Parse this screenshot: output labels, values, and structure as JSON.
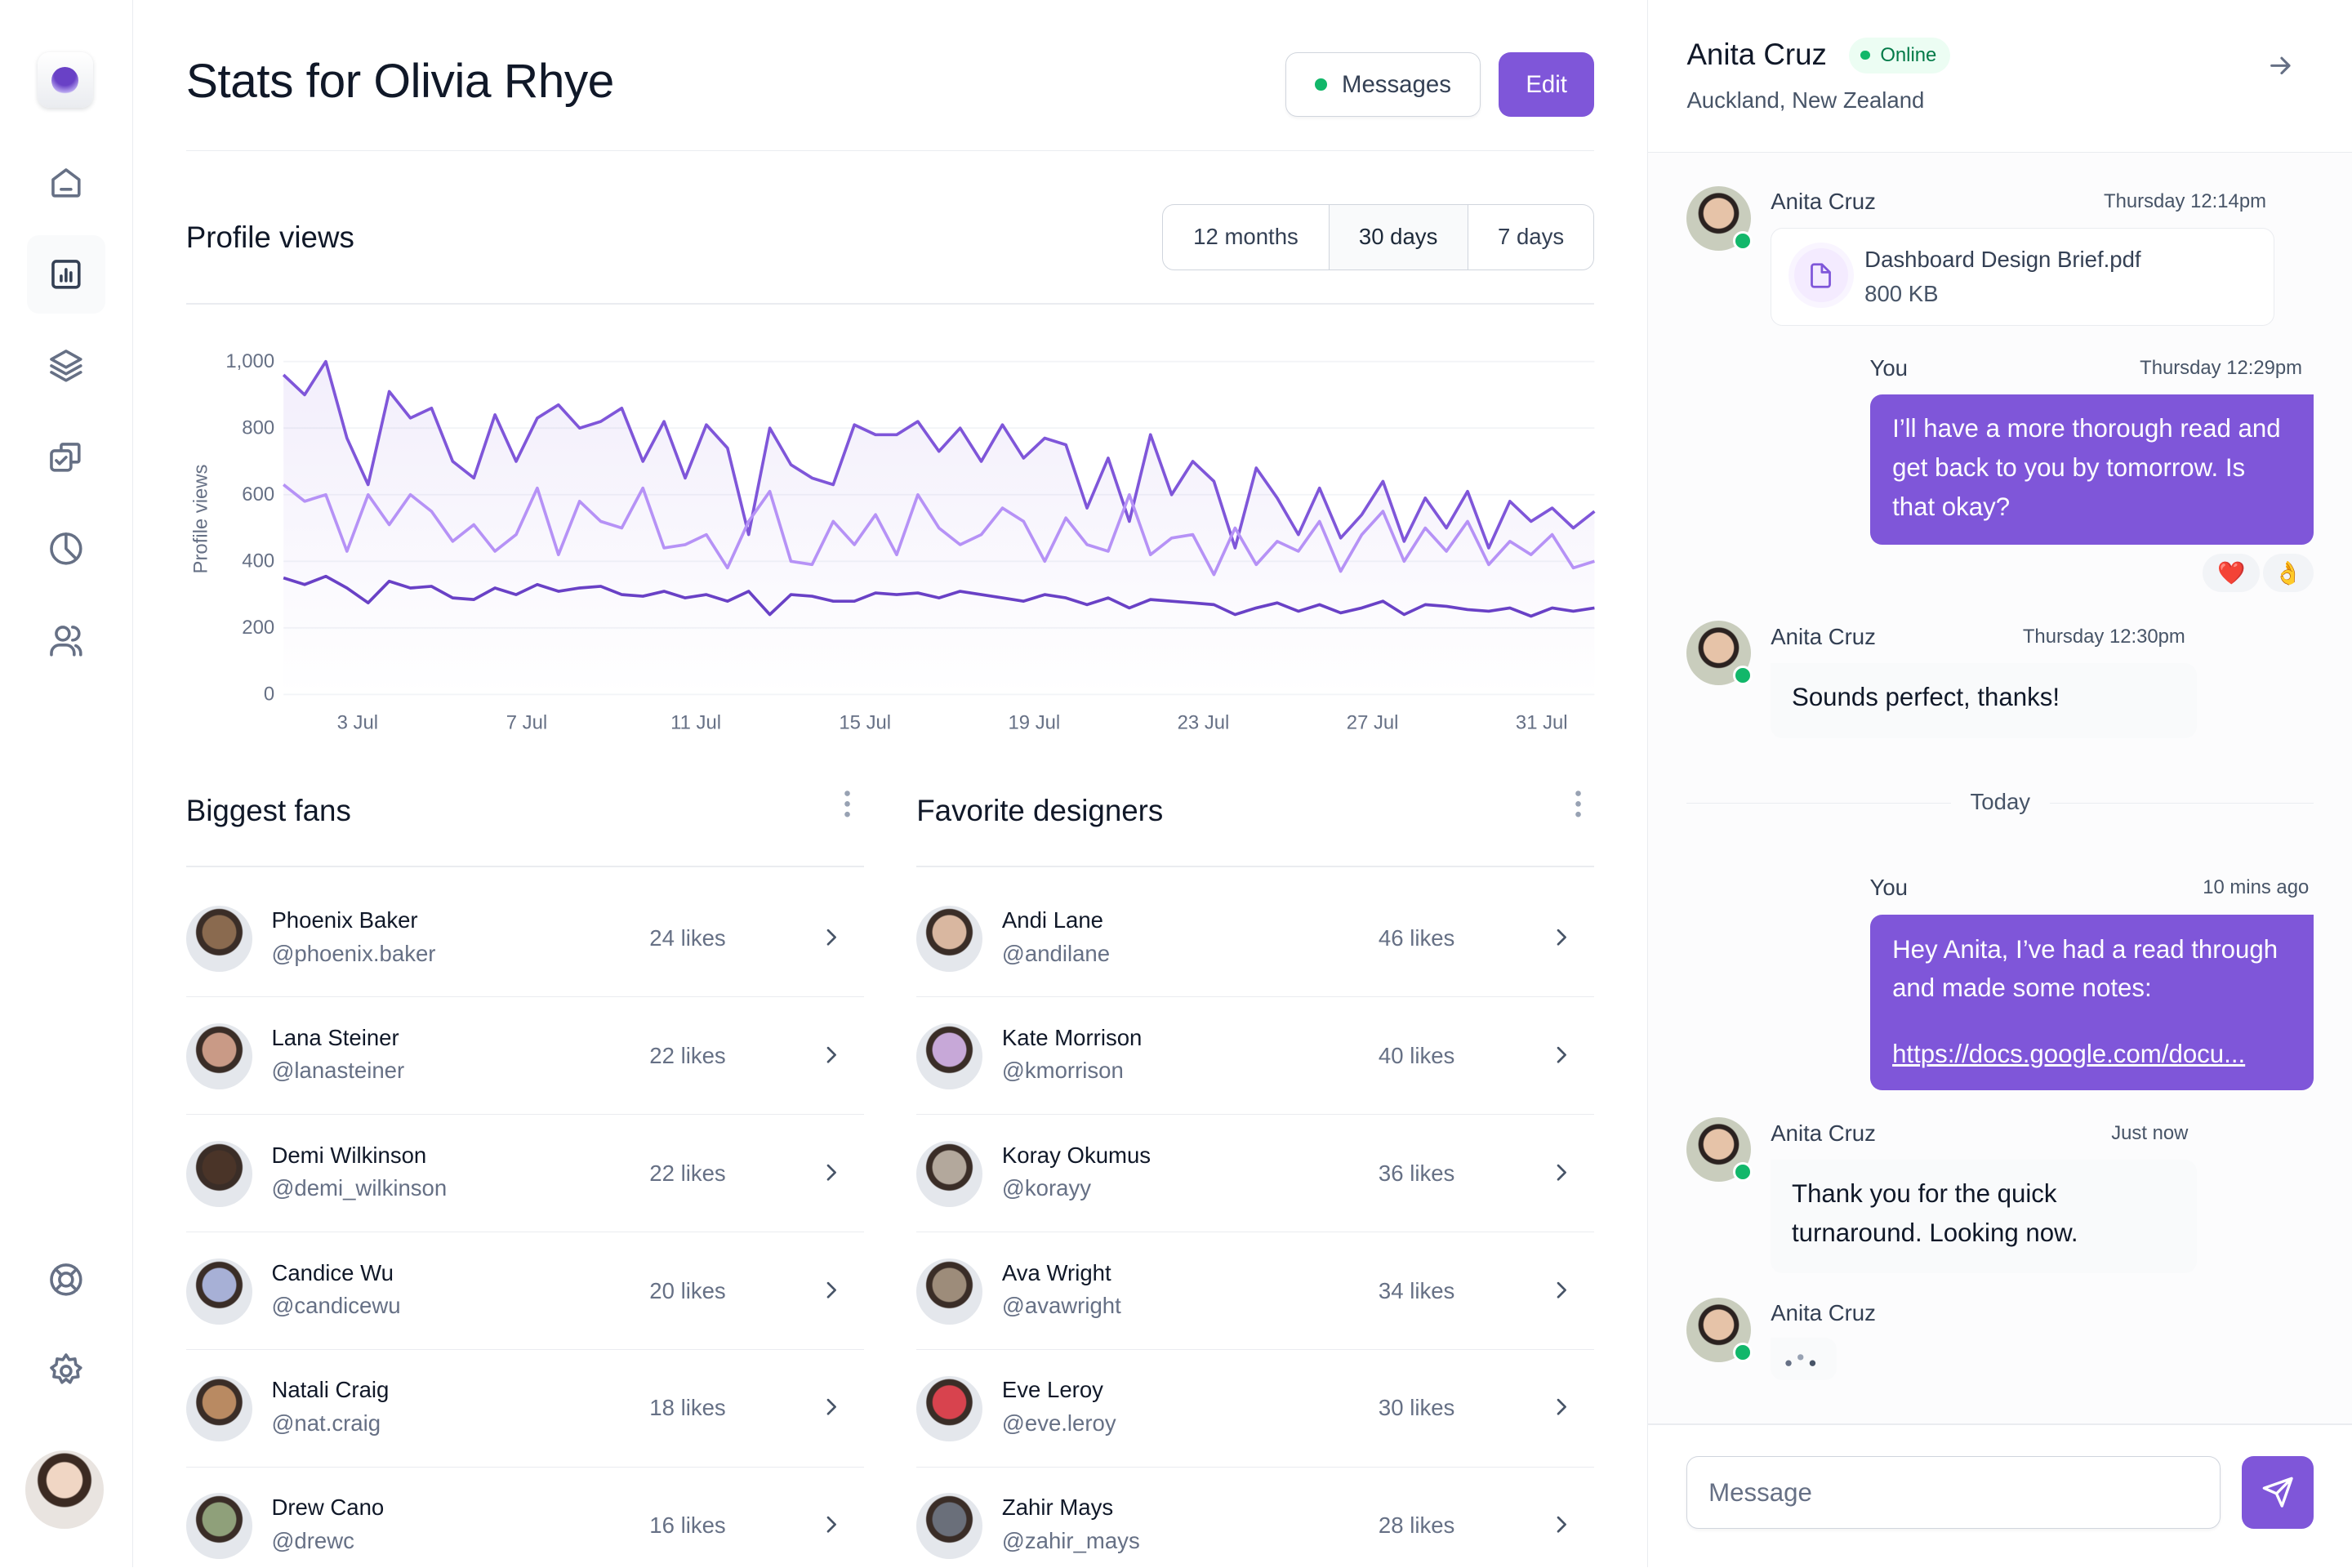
{
  "header": {
    "title": "Stats for Olivia Rhye",
    "messages_label": "Messages",
    "edit_label": "Edit"
  },
  "sidebar": {
    "items": [
      {
        "icon": "home-icon"
      },
      {
        "icon": "bar-chart-icon",
        "active": true
      },
      {
        "icon": "layers-icon"
      },
      {
        "icon": "check-copy-icon"
      },
      {
        "icon": "pie-chart-icon"
      },
      {
        "icon": "users-icon"
      }
    ],
    "bottom": [
      {
        "icon": "life-buoy-icon"
      },
      {
        "icon": "settings-icon"
      }
    ]
  },
  "profile_views": {
    "title": "Profile views",
    "tabs": [
      {
        "label": "12 months"
      },
      {
        "label": "30 days",
        "active": true
      },
      {
        "label": "7 days"
      }
    ]
  },
  "chart_data": {
    "type": "line",
    "title": "",
    "ylabel": "Profile views",
    "xlabel": "",
    "ylim": [
      0,
      1000
    ],
    "yticks": [
      "0",
      "200",
      "400",
      "600",
      "800",
      "1,000"
    ],
    "xticks": [
      "3 Jul",
      "7 Jul",
      "11 Jul",
      "15 Jul",
      "19 Jul",
      "23 Jul",
      "27 Jul",
      "31 Jul"
    ],
    "grid": true,
    "fill_under_top_series": true,
    "x": [
      "1 Jul 12:00",
      "2 Jul 00:00",
      "2 Jul 12:00",
      "3 Jul 00:00",
      "3 Jul 12:00",
      "4 Jul 00:00",
      "4 Jul 12:00",
      "5 Jul 00:00",
      "5 Jul 12:00",
      "6 Jul 00:00",
      "6 Jul 12:00",
      "7 Jul 00:00",
      "7 Jul 12:00",
      "8 Jul 00:00",
      "8 Jul 12:00",
      "9 Jul 00:00",
      "9 Jul 12:00",
      "10 Jul 00:00",
      "10 Jul 12:00",
      "11 Jul 00:00",
      "11 Jul 12:00",
      "12 Jul 00:00",
      "12 Jul 12:00",
      "13 Jul 00:00",
      "13 Jul 12:00",
      "14 Jul 00:00",
      "14 Jul 12:00",
      "15 Jul 00:00",
      "15 Jul 12:00",
      "16 Jul 00:00",
      "16 Jul 12:00",
      "17 Jul 00:00",
      "17 Jul 12:00",
      "18 Jul 00:00",
      "18 Jul 12:00",
      "19 Jul 00:00",
      "19 Jul 12:00",
      "20 Jul 00:00",
      "20 Jul 12:00",
      "21 Jul 00:00",
      "21 Jul 12:00",
      "22 Jul 00:00",
      "22 Jul 12:00",
      "23 Jul 00:00",
      "23 Jul 12:00",
      "24 Jul 00:00",
      "24 Jul 12:00",
      "25 Jul 00:00",
      "25 Jul 12:00",
      "26 Jul 00:00",
      "26 Jul 12:00",
      "27 Jul 00:00",
      "27 Jul 12:00",
      "28 Jul 00:00",
      "28 Jul 12:00",
      "29 Jul 00:00",
      "29 Jul 12:00",
      "30 Jul 00:00",
      "30 Jul 12:00",
      "31 Jul 00:00",
      "31 Jul 12:00",
      "1 Aug 00:00",
      "1 Aug 12:00"
    ],
    "series": [
      {
        "color": "#7F56D9",
        "values": [
          960,
          900,
          1000,
          770,
          630,
          910,
          830,
          860,
          700,
          650,
          840,
          700,
          830,
          870,
          800,
          820,
          860,
          700,
          820,
          650,
          810,
          740,
          480,
          800,
          690,
          650,
          630,
          810,
          780,
          780,
          820,
          730,
          800,
          700,
          810,
          710,
          770,
          750,
          560,
          710,
          520,
          780,
          600,
          700,
          640,
          440,
          680,
          590,
          480,
          620,
          470,
          540,
          640,
          460,
          590,
          500,
          610,
          440,
          580,
          520,
          560,
          500,
          550
        ]
      },
      {
        "color": "#B692F6",
        "values": [
          630,
          580,
          600,
          430,
          600,
          510,
          600,
          550,
          460,
          510,
          430,
          480,
          620,
          420,
          580,
          520,
          500,
          620,
          440,
          450,
          480,
          380,
          520,
          610,
          400,
          390,
          520,
          450,
          540,
          420,
          600,
          500,
          450,
          480,
          560,
          520,
          400,
          530,
          450,
          430,
          600,
          420,
          470,
          480,
          360,
          500,
          390,
          460,
          430,
          520,
          370,
          480,
          550,
          400,
          500,
          430,
          520,
          390,
          460,
          420,
          480,
          380,
          400
        ]
      },
      {
        "color": "#6941C6",
        "values": [
          350,
          330,
          355,
          320,
          275,
          340,
          320,
          325,
          290,
          285,
          320,
          300,
          330,
          310,
          320,
          325,
          300,
          295,
          310,
          290,
          300,
          280,
          310,
          240,
          300,
          295,
          280,
          280,
          305,
          300,
          305,
          290,
          310,
          300,
          290,
          280,
          300,
          290,
          270,
          290,
          260,
          285,
          280,
          275,
          270,
          240,
          260,
          275,
          250,
          270,
          245,
          260,
          280,
          240,
          270,
          265,
          255,
          250,
          260,
          235,
          260,
          250,
          260
        ]
      }
    ]
  },
  "fans": {
    "title": "Biggest fans",
    "items": [
      {
        "name": "Phoenix Baker",
        "handle": "@phoenix.baker",
        "likes": "24 likes",
        "avatar_color": "#8a6a4f"
      },
      {
        "name": "Lana Steiner",
        "handle": "@lanasteiner",
        "likes": "22 likes",
        "avatar_color": "#c99a86"
      },
      {
        "name": "Demi Wilkinson",
        "handle": "@demi_wilkinson",
        "likes": "22 likes",
        "avatar_color": "#4a3428"
      },
      {
        "name": "Candice Wu",
        "handle": "@candicewu",
        "likes": "20 likes",
        "avatar_color": "#a7b0d6"
      },
      {
        "name": "Natali Craig",
        "handle": "@nat.craig",
        "likes": "18 likes",
        "avatar_color": "#b98a62"
      },
      {
        "name": "Drew Cano",
        "handle": "@drewc",
        "likes": "16 likes",
        "avatar_color": "#8fa07a"
      }
    ]
  },
  "designers": {
    "title": "Favorite designers",
    "items": [
      {
        "name": "Andi Lane",
        "handle": "@andilane",
        "likes": "46 likes",
        "avatar_color": "#d9b7a0"
      },
      {
        "name": "Kate Morrison",
        "handle": "@kmorrison",
        "likes": "40 likes",
        "avatar_color": "#c7a8d8"
      },
      {
        "name": "Koray Okumus",
        "handle": "@korayy",
        "likes": "36 likes",
        "avatar_color": "#b3a89c"
      },
      {
        "name": "Ava Wright",
        "handle": "@avawright",
        "likes": "34 likes",
        "avatar_color": "#9d8c7a"
      },
      {
        "name": "Eve Leroy",
        "handle": "@eve.leroy",
        "likes": "30 likes",
        "avatar_color": "#d8434e"
      },
      {
        "name": "Zahir Mays",
        "handle": "@zahir_mays",
        "likes": "28 likes",
        "avatar_color": "#6a6f7a"
      }
    ]
  },
  "chat": {
    "name": "Anita Cruz",
    "status": "Online",
    "location": "Auckland, New Zealand",
    "m1": {
      "sender": "Anita Cruz",
      "time": "Thursday 12:14pm",
      "file_name": "Dashboard Design Brief.pdf",
      "file_size": "800 KB"
    },
    "m2": {
      "sender": "You",
      "time": "Thursday 12:29pm",
      "text": "I’ll have a more thorough read and get back to you by tomorrow. Is that okay?",
      "reactions": [
        "❤️",
        "👌"
      ]
    },
    "m3": {
      "sender": "Anita Cruz",
      "time": "Thursday 12:30pm",
      "text": "Sounds perfect, thanks!"
    },
    "divider": "Today",
    "m4": {
      "sender": "You",
      "time": "10 mins ago",
      "text": "Hey Anita, I’ve had a read through and made some notes:",
      "link": "https://docs.google.com/docu..."
    },
    "m5": {
      "sender": "Anita Cruz",
      "time": "Just now",
      "text": "Thank you for the quick turnaround. Looking now."
    },
    "m6": {
      "sender": "Anita Cruz",
      "typing": true
    },
    "input_placeholder": "Message"
  },
  "colors": {
    "accent": "#7F56D9",
    "online": "#12B76A"
  }
}
